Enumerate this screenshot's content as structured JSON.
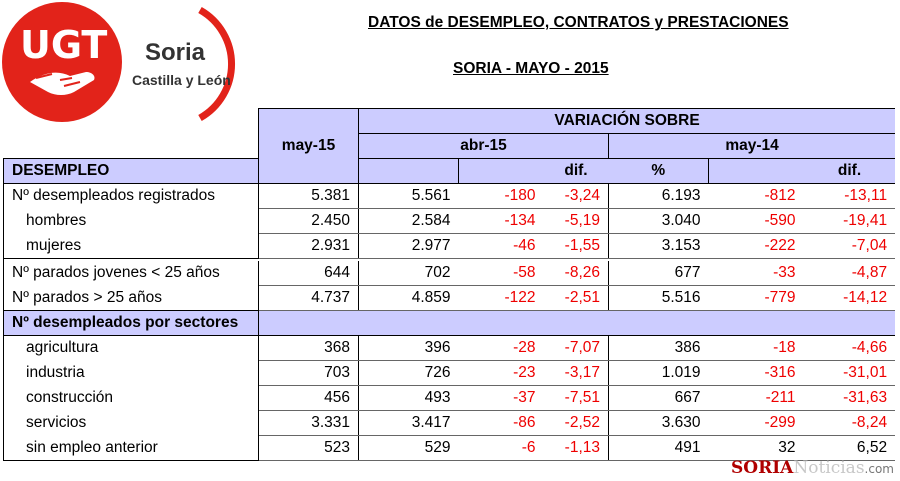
{
  "header": {
    "title": "DATOS de DESEMPLEO, CONTRATOS y PRESTACIONES",
    "subtitle": "SORIA - MAYO - 2015"
  },
  "logo": {
    "brand": "UGT",
    "region": "Soria",
    "area": "Castilla y León",
    "colors": {
      "red": "#e2231a",
      "white": "#ffffff"
    }
  },
  "table": {
    "col_current": "may-15",
    "variation_title": "VARIACIÓN SOBRE",
    "group1": "abr-15",
    "group2": "may-14",
    "dif_label": "dif.",
    "pct_label": "%",
    "sections": [
      {
        "title": "DESEMPLEO",
        "groups": [
          {
            "rows": [
              {
                "label": "Nº desempleados registrados",
                "indent": false,
                "may15": "5.381",
                "abr15": "5.561",
                "dif1": "-180",
                "pct1": "-3,24",
                "may14": "6.193",
                "dif2": "-812",
                "pct2": "-13,11"
              },
              {
                "label": "hombres",
                "indent": true,
                "may15": "2.450",
                "abr15": "2.584",
                "dif1": "-134",
                "pct1": "-5,19",
                "may14": "3.040",
                "dif2": "-590",
                "pct2": "-19,41"
              },
              {
                "label": "mujeres",
                "indent": true,
                "may15": "2.931",
                "abr15": "2.977",
                "dif1": "-46",
                "pct1": "-1,55",
                "may14": "3.153",
                "dif2": "-222",
                "pct2": "-7,04"
              }
            ]
          },
          {
            "rows": [
              {
                "label": "Nº parados jovenes < 25 años",
                "indent": false,
                "may15": "644",
                "abr15": "702",
                "dif1": "-58",
                "pct1": "-8,26",
                "may14": "677",
                "dif2": "-33",
                "pct2": "-4,87"
              },
              {
                "label": "Nº parados > 25 años",
                "indent": false,
                "may15": "4.737",
                "abr15": "4.859",
                "dif1": "-122",
                "pct1": "-2,51",
                "may14": "5.516",
                "dif2": "-779",
                "pct2": "-14,12"
              }
            ]
          }
        ]
      },
      {
        "title": "Nº desempleados por sectores",
        "groups": [
          {
            "rows": [
              {
                "label": "agricultura",
                "indent": true,
                "may15": "368",
                "abr15": "396",
                "dif1": "-28",
                "pct1": "-7,07",
                "may14": "386",
                "dif2": "-18",
                "pct2": "-4,66"
              },
              {
                "label": "industria",
                "indent": true,
                "may15": "703",
                "abr15": "726",
                "dif1": "-23",
                "pct1": "-3,17",
                "may14": "1.019",
                "dif2": "-316",
                "pct2": "-31,01"
              },
              {
                "label": "construcción",
                "indent": true,
                "may15": "456",
                "abr15": "493",
                "dif1": "-37",
                "pct1": "-7,51",
                "may14": "667",
                "dif2": "-211",
                "pct2": "-31,63"
              },
              {
                "label": "servicios",
                "indent": true,
                "may15": "3.331",
                "abr15": "3.417",
                "dif1": "-86",
                "pct1": "-2,52",
                "may14": "3.630",
                "dif2": "-299",
                "pct2": "-8,24"
              },
              {
                "label": "sin empleo anterior",
                "indent": true,
                "may15": "523",
                "abr15": "529",
                "dif1": "-6",
                "pct1": "-1,13",
                "may14": "491",
                "dif2": "32",
                "pct2": "6,52"
              }
            ]
          }
        ]
      }
    ]
  },
  "watermark": {
    "part1": "SORIA",
    "part2": "Noticias",
    "part3": ".com"
  },
  "colors": {
    "header_bg": "#ccccff",
    "negative": "#ee0000"
  }
}
